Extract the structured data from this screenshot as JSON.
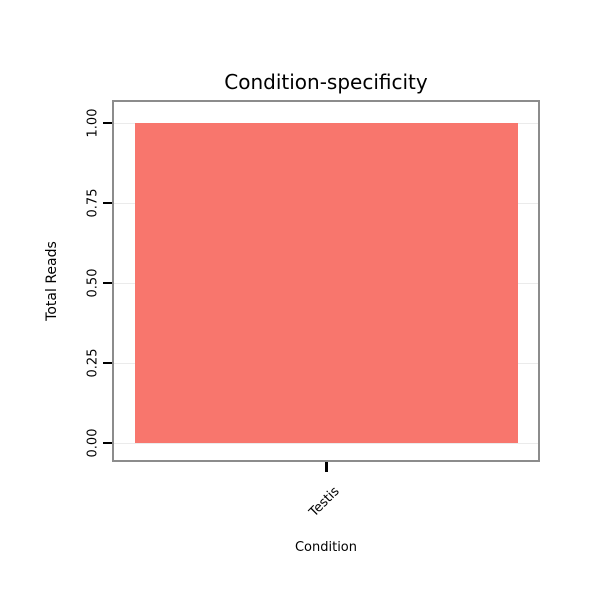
{
  "chart_data": {
    "type": "bar",
    "title": "Condition-specificity",
    "xlabel": "Condition",
    "ylabel": "Total Reads",
    "categories": [
      "Testis"
    ],
    "values": [
      1.0
    ],
    "ylim": [
      0,
      1
    ],
    "yticks": [
      0,
      0.25,
      0.5,
      0.75,
      1
    ],
    "ytick_labels": [
      "0.00",
      "0.25",
      "0.50",
      "0.75",
      "1.00"
    ],
    "bar_color": "#F8766D",
    "panel_border_color": "#8C8C8C",
    "gridline_color": "#EBEBEB",
    "grid": true,
    "legend_position": "none"
  }
}
